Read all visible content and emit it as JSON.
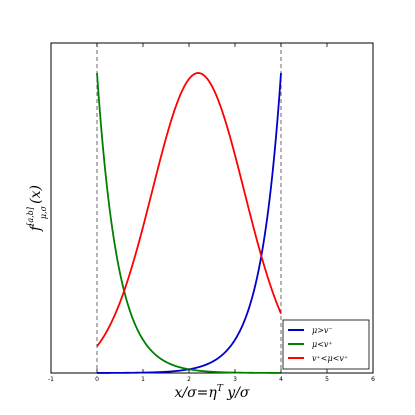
{
  "chart_data": {
    "type": "line",
    "title": "",
    "xlabel": "x/σ=η",
    "xlabel_sup": "T",
    "xlabel_tail": " y/σ",
    "ylabel": "f",
    "ylabel_sub": "μ,σ",
    "ylabel_sup": "[a,b]",
    "ylabel_tail": "(x)",
    "xlim": [
      -1,
      6
    ],
    "ylim": [
      0,
      1.1
    ],
    "x_ticks": [
      "-1",
      "0",
      "1",
      "2",
      "3",
      "4",
      "5",
      "6"
    ],
    "y_ticks_shown": false,
    "vertical_lines": [
      0,
      4
    ],
    "legend_position": "bottom-right",
    "series": [
      {
        "name": "μ>v⁻",
        "color": "#0000cc",
        "kind": "right-exp",
        "lambda": 2.2,
        "x_range": [
          0,
          4
        ]
      },
      {
        "name": "μ<v⁺",
        "color": "#008000",
        "kind": "left-exp",
        "lambda": 2.2,
        "x_range": [
          0,
          4
        ]
      },
      {
        "name": "v⁺<μ<v⁺",
        "color": "#ff0000",
        "kind": "gauss",
        "mu": 2.2,
        "sigma": 1.0,
        "x_range": [
          0,
          4
        ]
      }
    ]
  }
}
